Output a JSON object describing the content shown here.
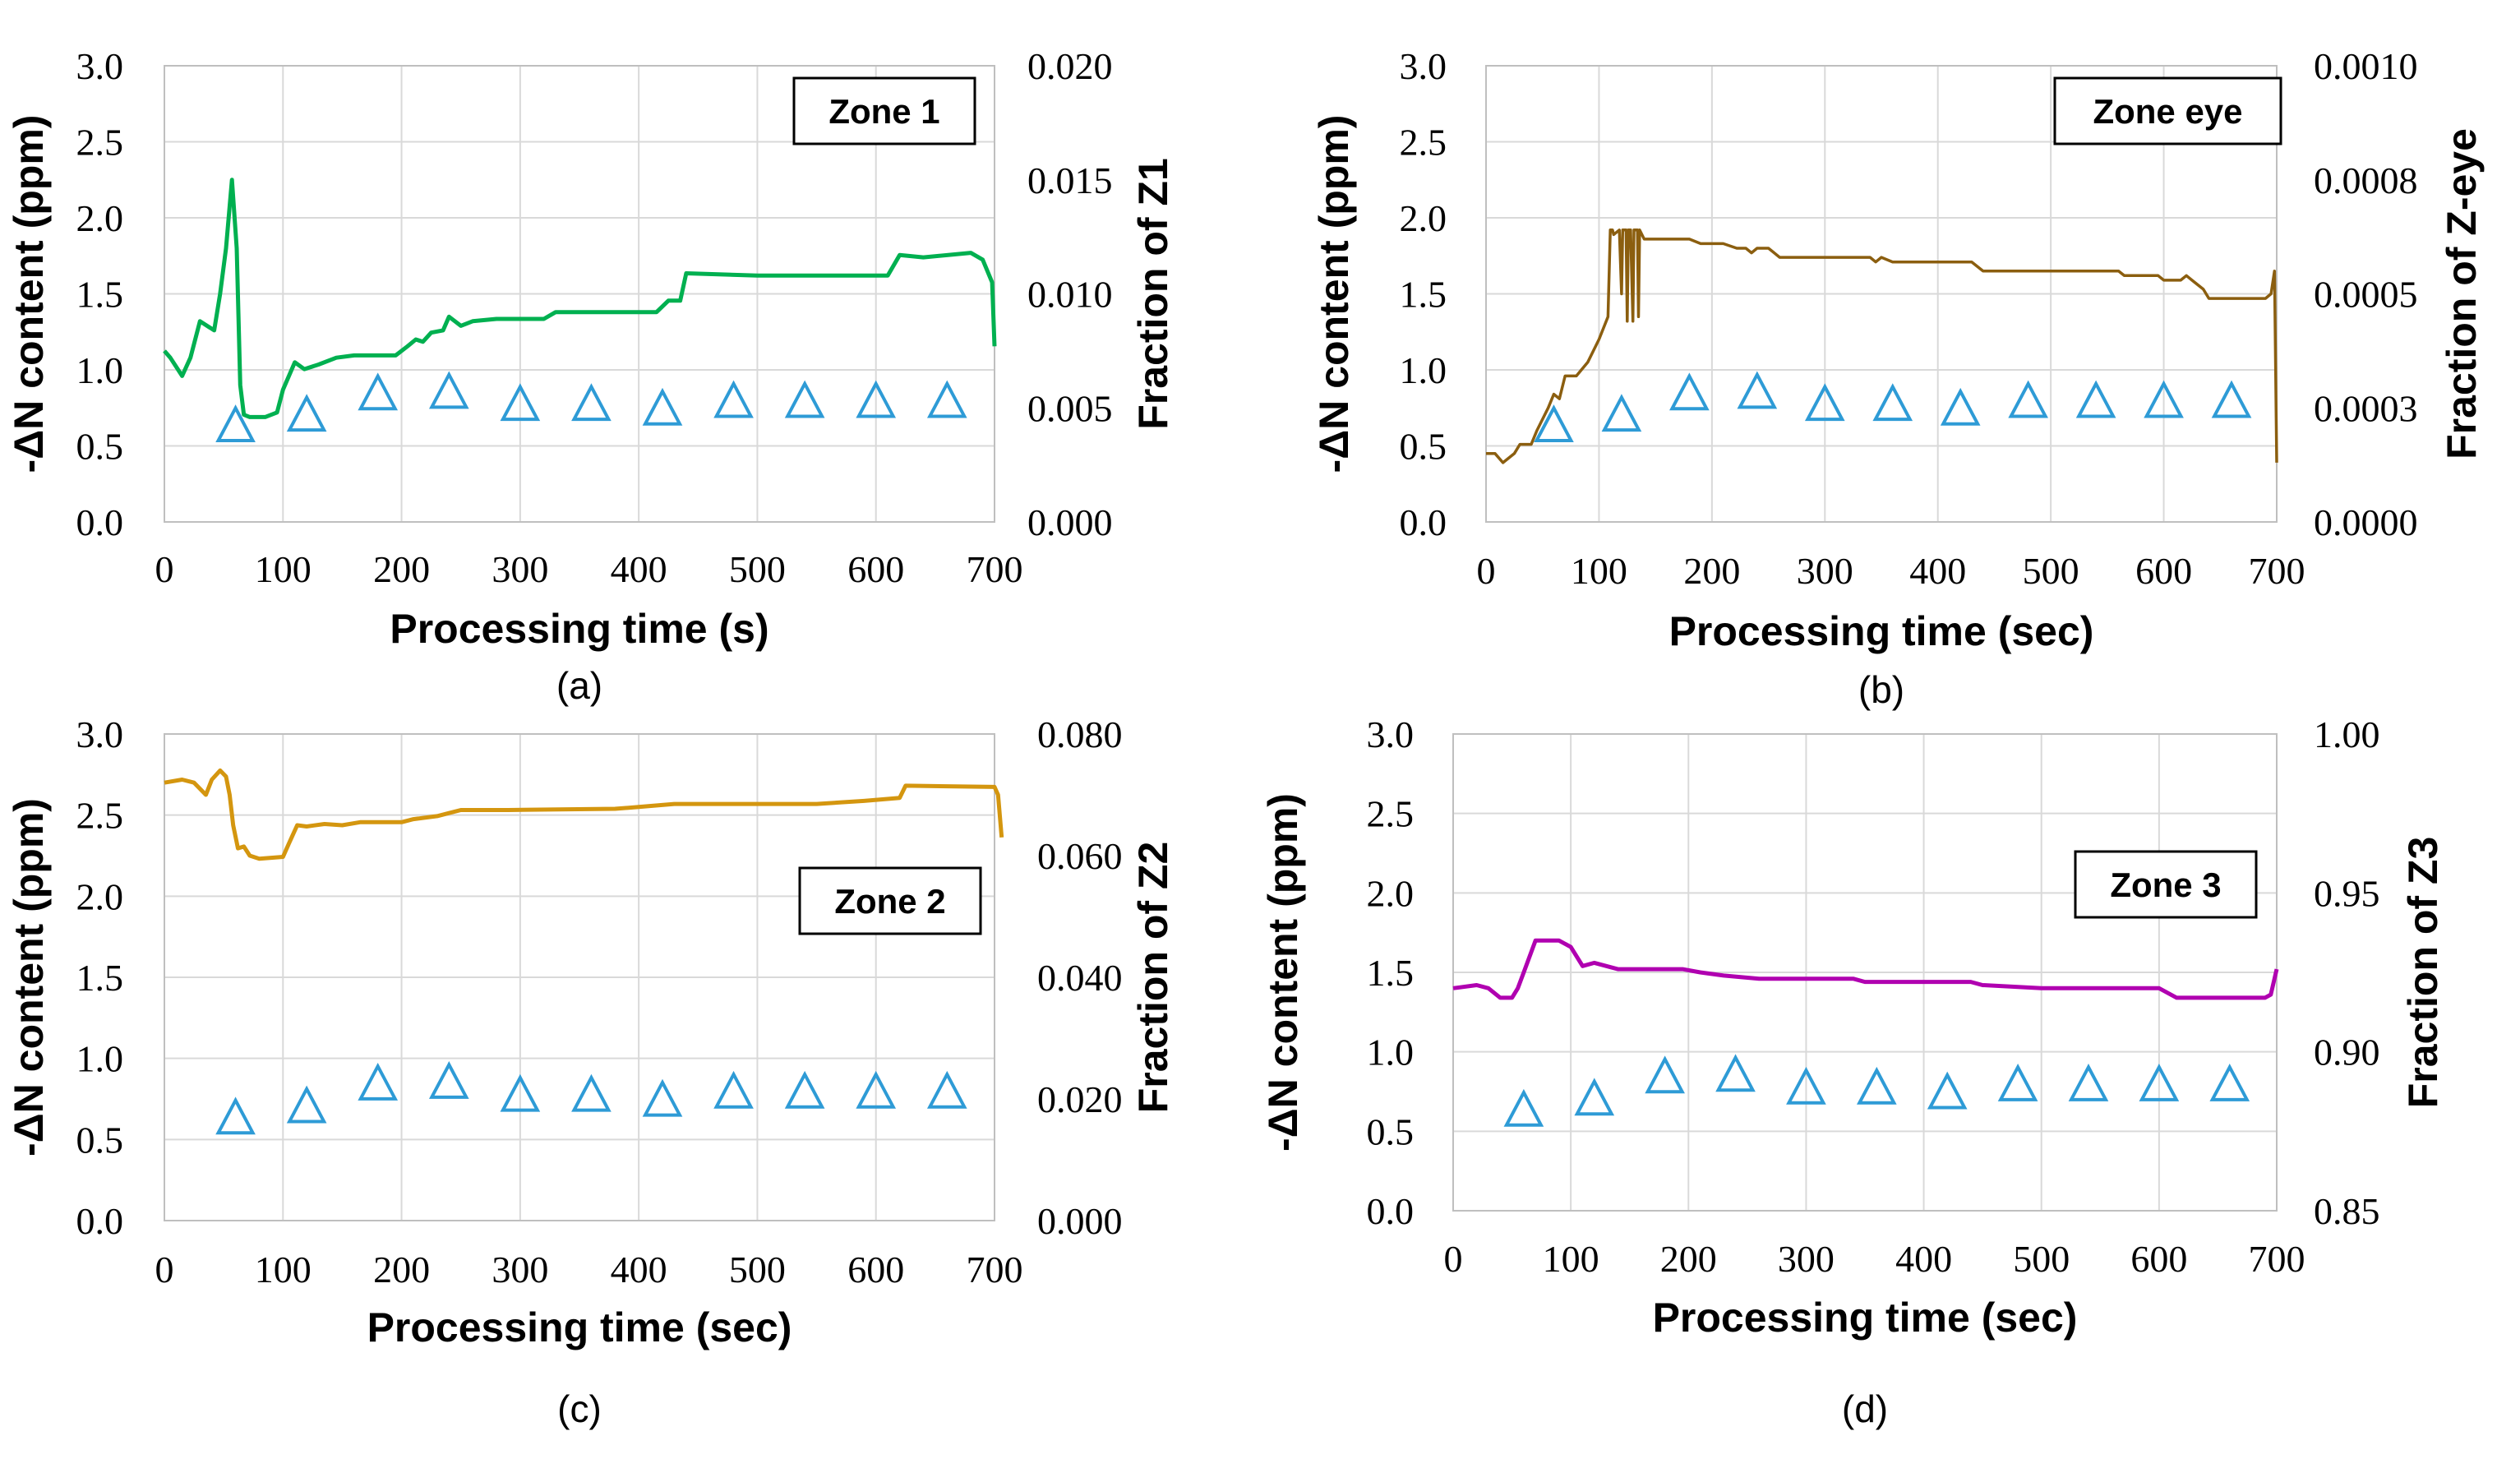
{
  "chart_data": [
    {
      "type": "line",
      "panel_label": "(a)",
      "zone_label": "Zone 1",
      "xlabel": "Processing time (s)",
      "ylabel": "-ΔN content (ppm)",
      "y2label": "Fraction of Z1",
      "xlim": [
        0,
        700
      ],
      "ylim": [
        0,
        3.0
      ],
      "y2lim": [
        0,
        0.02
      ],
      "x_ticks": [
        "0",
        "100",
        "200",
        "300",
        "400",
        "500",
        "600",
        "700"
      ],
      "y_ticks": [
        "0.0",
        "0.5",
        "1.0",
        "1.5",
        "2.0",
        "2.5",
        "3.0"
      ],
      "y2_ticks": [
        "0.000",
        "0.005",
        "0.010",
        "0.015",
        "0.020"
      ],
      "series": [
        {
          "name": "Fraction of Z1",
          "axis": "right",
          "color": "#00b050",
          "points": [
            [
              0,
              0.0075
            ],
            [
              5,
              0.0072
            ],
            [
              15,
              0.0064
            ],
            [
              22,
              0.0072
            ],
            [
              30,
              0.0088
            ],
            [
              36,
              0.0086
            ],
            [
              42,
              0.0084
            ],
            [
              47,
              0.01
            ],
            [
              52,
              0.012
            ],
            [
              57,
              0.015
            ],
            [
              61,
              0.012
            ],
            [
              64,
              0.006
            ],
            [
              67,
              0.0047
            ],
            [
              72,
              0.0046
            ],
            [
              85,
              0.0046
            ],
            [
              95,
              0.0048
            ],
            [
              100,
              0.0058
            ],
            [
              110,
              0.007
            ],
            [
              118,
              0.0067
            ],
            [
              130,
              0.0069
            ],
            [
              145,
              0.0072
            ],
            [
              160,
              0.0073
            ],
            [
              195,
              0.0073
            ],
            [
              205,
              0.0077
            ],
            [
              212,
              0.008
            ],
            [
              218,
              0.0079
            ],
            [
              225,
              0.0083
            ],
            [
              235,
              0.0084
            ],
            [
              240,
              0.009
            ],
            [
              250,
              0.0086
            ],
            [
              260,
              0.0088
            ],
            [
              280,
              0.0089
            ],
            [
              320,
              0.0089
            ],
            [
              330,
              0.0092
            ],
            [
              415,
              0.0092
            ],
            [
              425,
              0.0097
            ],
            [
              435,
              0.0097
            ],
            [
              440,
              0.0109
            ],
            [
              500,
              0.0108
            ],
            [
              610,
              0.0108
            ],
            [
              620,
              0.0117
            ],
            [
              640,
              0.0116
            ],
            [
              680,
              0.0118
            ],
            [
              690,
              0.0115
            ],
            [
              698,
              0.0105
            ],
            [
              700,
              0.0077
            ]
          ]
        },
        {
          "name": "-ΔN content (ppm)",
          "axis": "left",
          "color": "#2e9bd6",
          "marker": "triangle",
          "points": [
            [
              60,
              0.63
            ],
            [
              120,
              0.7
            ],
            [
              180,
              0.84
            ],
            [
              240,
              0.85
            ],
            [
              300,
              0.77
            ],
            [
              360,
              0.77
            ],
            [
              420,
              0.74
            ],
            [
              480,
              0.79
            ],
            [
              540,
              0.79
            ],
            [
              600,
              0.79
            ],
            [
              660,
              0.79
            ]
          ]
        }
      ]
    },
    {
      "type": "line",
      "panel_label": "(b)",
      "zone_label": "Zone eye",
      "xlabel": "Processing time (sec)",
      "ylabel": "-ΔN content (ppm)",
      "y2label": "Fraction of Z-eye",
      "xlim": [
        0,
        700
      ],
      "ylim": [
        0,
        3.0
      ],
      "y2lim": [
        0,
        0.001
      ],
      "x_ticks": [
        "0",
        "100",
        "200",
        "300",
        "400",
        "500",
        "600",
        "700"
      ],
      "y_ticks": [
        "0.0",
        "0.5",
        "1.0",
        "1.5",
        "2.0",
        "2.5",
        "3.0"
      ],
      "y2_ticks": [
        "0.0000",
        "0.0003",
        "0.0005",
        "0.0008",
        "0.0010"
      ],
      "series": [
        {
          "name": "Fraction of Z-eye",
          "axis": "right",
          "color": "#8b5e0f",
          "points": [
            [
              0,
              0.00015
            ],
            [
              8,
              0.00015
            ],
            [
              15,
              0.00013
            ],
            [
              25,
              0.00015
            ],
            [
              30,
              0.00017
            ],
            [
              40,
              0.00017
            ],
            [
              45,
              0.0002
            ],
            [
              55,
              0.00025
            ],
            [
              60,
              0.00028
            ],
            [
              65,
              0.00027
            ],
            [
              70,
              0.00032
            ],
            [
              80,
              0.00032
            ],
            [
              90,
              0.00035
            ],
            [
              100,
              0.0004
            ],
            [
              108,
              0.00045
            ],
            [
              110,
              0.00064
            ],
            [
              112,
              0.00064
            ],
            [
              113,
              0.00063
            ],
            [
              118,
              0.00064
            ],
            [
              120,
              0.0005
            ],
            [
              121,
              0.00064
            ],
            [
              124,
              0.00064
            ],
            [
              125,
              0.00044
            ],
            [
              126,
              0.00064
            ],
            [
              128,
              0.00064
            ],
            [
              130,
              0.00044
            ],
            [
              131,
              0.00064
            ],
            [
              134,
              0.00064
            ],
            [
              135,
              0.00045
            ],
            [
              136,
              0.00064
            ],
            [
              140,
              0.00062
            ],
            [
              180,
              0.00062
            ],
            [
              190,
              0.00061
            ],
            [
              210,
              0.00061
            ],
            [
              222,
              0.0006
            ],
            [
              230,
              0.0006
            ],
            [
              235,
              0.00059
            ],
            [
              240,
              0.0006
            ],
            [
              250,
              0.0006
            ],
            [
              260,
              0.00058
            ],
            [
              295,
              0.00058
            ],
            [
              340,
              0.00058
            ],
            [
              345,
              0.00057
            ],
            [
              350,
              0.00058
            ],
            [
              360,
              0.00057
            ],
            [
              430,
              0.00057
            ],
            [
              440,
              0.00055
            ],
            [
              560,
              0.00055
            ],
            [
              565,
              0.00054
            ],
            [
              595,
              0.00054
            ],
            [
              600,
              0.00053
            ],
            [
              615,
              0.00053
            ],
            [
              620,
              0.00054
            ],
            [
              625,
              0.00053
            ],
            [
              635,
              0.00051
            ],
            [
              640,
              0.00049
            ],
            [
              690,
              0.00049
            ],
            [
              695,
              0.0005
            ],
            [
              698,
              0.00055
            ],
            [
              700,
              0.00013
            ]
          ]
        },
        {
          "name": "-ΔN content (ppm)",
          "axis": "left",
          "color": "#2e9bd6",
          "marker": "triangle",
          "points": [
            [
              60,
              0.63
            ],
            [
              120,
              0.7
            ],
            [
              180,
              0.84
            ],
            [
              240,
              0.85
            ],
            [
              300,
              0.77
            ],
            [
              360,
              0.77
            ],
            [
              420,
              0.74
            ],
            [
              480,
              0.79
            ],
            [
              540,
              0.79
            ],
            [
              600,
              0.79
            ],
            [
              660,
              0.79
            ]
          ]
        }
      ]
    },
    {
      "type": "line",
      "panel_label": "(c)",
      "zone_label": "Zone 2",
      "xlabel": "Processing time (sec)",
      "ylabel": "-ΔN content (ppm)",
      "y2label": "Fraction of Z2",
      "xlim": [
        0,
        700
      ],
      "ylim": [
        0,
        3.0
      ],
      "y2lim": [
        0,
        0.08
      ],
      "x_ticks": [
        "0",
        "100",
        "200",
        "300",
        "400",
        "500",
        "600",
        "700"
      ],
      "y_ticks": [
        "0.0",
        "0.5",
        "1.0",
        "1.5",
        "2.0",
        "2.5",
        "3.0"
      ],
      "y2_ticks": [
        "0.000",
        "0.020",
        "0.040",
        "0.060",
        "0.080"
      ],
      "series": [
        {
          "name": "Fraction of Z2",
          "axis": "right",
          "color": "#d4960f",
          "points": [
            [
              0,
              0.072
            ],
            [
              15,
              0.0725
            ],
            [
              25,
              0.072
            ],
            [
              30,
              0.071
            ],
            [
              35,
              0.07
            ],
            [
              40,
              0.0725
            ],
            [
              47,
              0.074
            ],
            [
              52,
              0.073
            ],
            [
              55,
              0.07
            ],
            [
              58,
              0.065
            ],
            [
              62,
              0.0612
            ],
            [
              67,
              0.0615
            ],
            [
              72,
              0.06
            ],
            [
              80,
              0.0595
            ],
            [
              100,
              0.0598
            ],
            [
              105,
              0.062
            ],
            [
              112,
              0.065
            ],
            [
              120,
              0.0648
            ],
            [
              135,
              0.0652
            ],
            [
              150,
              0.065
            ],
            [
              165,
              0.0655
            ],
            [
              200,
              0.0655
            ],
            [
              210,
              0.066
            ],
            [
              230,
              0.0665
            ],
            [
              240,
              0.067
            ],
            [
              250,
              0.0675
            ],
            [
              290,
              0.0675
            ],
            [
              380,
              0.0677
            ],
            [
              400,
              0.068
            ],
            [
              430,
              0.0685
            ],
            [
              550,
              0.0685
            ],
            [
              590,
              0.069
            ],
            [
              620,
              0.0695
            ],
            [
              625,
              0.0715
            ],
            [
              700,
              0.0713
            ],
            [
              703,
              0.07
            ],
            [
              706,
              0.063
            ]
          ]
        },
        {
          "name": "-ΔN content (ppm)",
          "axis": "left",
          "color": "#2e9bd6",
          "marker": "triangle",
          "points": [
            [
              60,
              0.63
            ],
            [
              120,
              0.7
            ],
            [
              180,
              0.84
            ],
            [
              240,
              0.85
            ],
            [
              300,
              0.77
            ],
            [
              360,
              0.77
            ],
            [
              420,
              0.74
            ],
            [
              480,
              0.79
            ],
            [
              540,
              0.79
            ],
            [
              600,
              0.79
            ],
            [
              660,
              0.79
            ]
          ]
        }
      ]
    },
    {
      "type": "line",
      "panel_label": "(d)",
      "zone_label": "Zone 3",
      "xlabel": "Processing time (sec)",
      "ylabel": "-ΔN content (ppm)",
      "y2label": "Fraction of Z3",
      "xlim": [
        0,
        700
      ],
      "ylim": [
        0,
        3.0
      ],
      "y2lim": [
        0.85,
        1.0
      ],
      "x_ticks": [
        "0",
        "100",
        "200",
        "300",
        "400",
        "500",
        "600",
        "700"
      ],
      "y_ticks": [
        "0.0",
        "0.5",
        "1.0",
        "1.5",
        "2.0",
        "2.5",
        "3.0"
      ],
      "y2_ticks": [
        "0.85",
        "0.90",
        "0.95",
        "1.00"
      ],
      "series": [
        {
          "name": "Fraction of Z3",
          "axis": "right",
          "color": "#b000b0",
          "points": [
            [
              0,
              0.92
            ],
            [
              20,
              0.921
            ],
            [
              30,
              0.92
            ],
            [
              40,
              0.917
            ],
            [
              50,
              0.917
            ],
            [
              55,
              0.92
            ],
            [
              60,
              0.925
            ],
            [
              70,
              0.935
            ],
            [
              90,
              0.935
            ],
            [
              100,
              0.933
            ],
            [
              110,
              0.927
            ],
            [
              120,
              0.928
            ],
            [
              140,
              0.926
            ],
            [
              195,
              0.926
            ],
            [
              210,
              0.925
            ],
            [
              230,
              0.924
            ],
            [
              260,
              0.923
            ],
            [
              340,
              0.923
            ],
            [
              350,
              0.922
            ],
            [
              440,
              0.922
            ],
            [
              450,
              0.921
            ],
            [
              500,
              0.92
            ],
            [
              600,
              0.92
            ],
            [
              615,
              0.917
            ],
            [
              660,
              0.917
            ],
            [
              690,
              0.917
            ],
            [
              695,
              0.918
            ],
            [
              700,
              0.926
            ]
          ]
        },
        {
          "name": "-ΔN content (ppm)",
          "axis": "left",
          "color": "#2e9bd6",
          "marker": "triangle",
          "points": [
            [
              60,
              0.63
            ],
            [
              120,
              0.7
            ],
            [
              180,
              0.84
            ],
            [
              240,
              0.85
            ],
            [
              300,
              0.77
            ],
            [
              360,
              0.77
            ],
            [
              420,
              0.74
            ],
            [
              480,
              0.79
            ],
            [
              540,
              0.79
            ],
            [
              600,
              0.79
            ],
            [
              660,
              0.79
            ]
          ]
        }
      ]
    }
  ]
}
